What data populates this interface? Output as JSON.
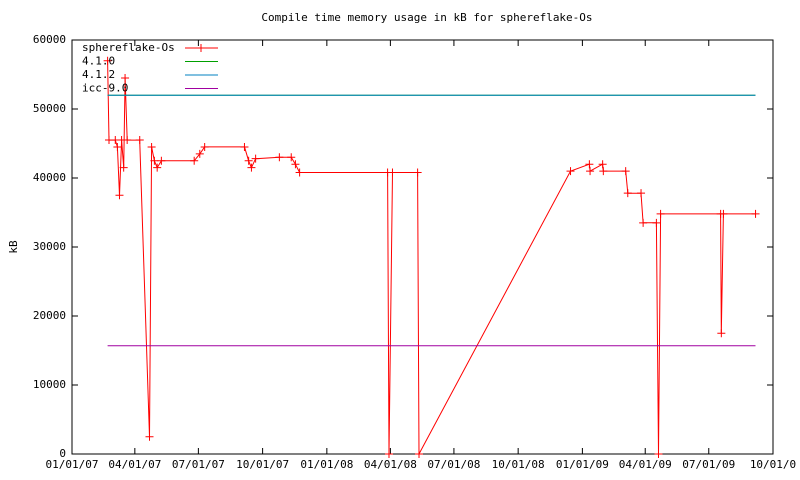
{
  "chart_data": {
    "type": "line",
    "title": "Compile time memory usage in kB for sphereflake-Os",
    "y_label": "kB",
    "xlim": [
      "2007-01-01",
      "2009-10-01"
    ],
    "xticks": [
      {
        "value": "2007-01-01",
        "label": "01/01/07"
      },
      {
        "value": "2007-04-01",
        "label": "04/01/07"
      },
      {
        "value": "2007-07-01",
        "label": "07/01/07"
      },
      {
        "value": "2007-10-01",
        "label": "10/01/07"
      },
      {
        "value": "2008-01-01",
        "label": "01/01/08"
      },
      {
        "value": "2008-04-01",
        "label": "04/01/08"
      },
      {
        "value": "2008-07-01",
        "label": "07/01/08"
      },
      {
        "value": "2008-10-01",
        "label": "10/01/08"
      },
      {
        "value": "2009-01-01",
        "label": "01/01/09"
      },
      {
        "value": "2009-04-01",
        "label": "04/01/09"
      },
      {
        "value": "2009-07-01",
        "label": "07/01/09"
      },
      {
        "value": "2009-10-01",
        "label": "10/01/0"
      }
    ],
    "ylim": [
      0,
      60000
    ],
    "yticks": [
      0,
      10000,
      20000,
      30000,
      40000,
      50000,
      60000
    ],
    "legend": "top-left",
    "series": [
      {
        "name": "sphereflake-Os",
        "color": "#ff0000",
        "markers": true,
        "x": [
          "2007-02-21",
          "2007-02-23",
          "2007-03-04",
          "2007-03-07",
          "2007-03-10",
          "2007-03-13",
          "2007-03-16",
          "2007-03-18",
          "2007-03-21",
          "2007-04-08",
          "2007-04-22",
          "2007-04-25",
          "2007-04-29",
          "2007-05-03",
          "2007-05-09",
          "2007-06-25",
          "2007-07-03",
          "2007-07-10",
          "2007-09-05",
          "2007-09-11",
          "2007-09-15",
          "2007-09-21",
          "2007-10-25",
          "2007-11-11",
          "2007-11-17",
          "2007-11-23",
          "2008-03-28",
          "2008-03-30",
          "2008-04-04",
          "2008-05-10",
          "2008-05-12",
          "2008-12-15",
          "2009-01-11",
          "2009-01-12",
          "2009-01-30",
          "2009-01-31",
          "2009-03-04",
          "2009-03-07",
          "2009-03-26",
          "2009-03-29",
          "2009-04-17",
          "2009-04-20",
          "2009-04-23",
          "2009-07-18",
          "2009-07-19",
          "2009-07-22",
          "2009-09-06"
        ],
        "values": [
          57000,
          45500,
          45500,
          44500,
          37500,
          45500,
          41500,
          54500,
          45500,
          45500,
          2500,
          44500,
          42500,
          41500,
          42500,
          42500,
          43500,
          44500,
          44500,
          42500,
          41500,
          42800,
          43000,
          43000,
          42000,
          40800,
          40800,
          0,
          40800,
          40800,
          0,
          41000,
          42000,
          41000,
          42000,
          41000,
          41000,
          37800,
          37800,
          33500,
          33500,
          0,
          34800,
          34800,
          17500,
          34800,
          34800
        ]
      },
      {
        "name": "4.1.0",
        "color": "#00a000",
        "markers": false,
        "x": [
          "2007-02-21",
          "2009-09-06"
        ],
        "values": [
          52000,
          52000
        ]
      },
      {
        "name": "4.1.2",
        "color": "#0080c0",
        "markers": false,
        "x": [
          "2007-02-21",
          "2009-09-06"
        ],
        "values": [
          52000,
          52000
        ]
      },
      {
        "name": "icc-9.0",
        "color": "#a000a0",
        "markers": false,
        "x": [
          "2007-02-21",
          "2009-09-06"
        ],
        "values": [
          15700,
          15700
        ]
      }
    ]
  }
}
